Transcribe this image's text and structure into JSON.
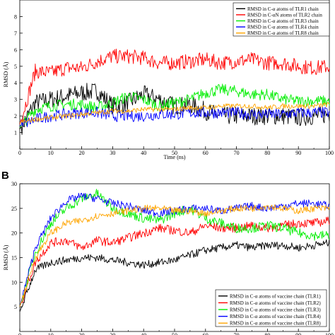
{
  "chart_data": [
    {
      "type": "line",
      "panel_label": "",
      "xlabel": "Time (ns)",
      "ylabel": "RMSD (Å)",
      "xlim": [
        0,
        100
      ],
      "ylim": [
        0,
        9
      ],
      "x_ticks": [
        0,
        10,
        20,
        30,
        40,
        50,
        60,
        70,
        80,
        90,
        100
      ],
      "y_ticks": [
        0,
        1,
        2,
        3,
        4,
        5,
        6,
        7,
        8
      ],
      "x_tick_labels": [
        "0",
        "10",
        "20",
        "30",
        "40",
        "50",
        "60",
        "70",
        "80",
        "90",
        "100"
      ],
      "y_tick_labels": [
        "",
        "1",
        "2",
        "3",
        "4",
        "5",
        "6",
        "7",
        "8"
      ],
      "grid": false,
      "legend_position": "top-right",
      "x": [
        0,
        5,
        10,
        15,
        20,
        25,
        30,
        35,
        40,
        45,
        50,
        55,
        60,
        65,
        70,
        75,
        80,
        85,
        90,
        95,
        100
      ],
      "series": [
        {
          "name": "RMSD in C-α atoms of TLR1 chain",
          "color": "#000000",
          "values": [
            1.2,
            2.8,
            3.0,
            3.2,
            3.4,
            3.5,
            2.6,
            2.8,
            3.3,
            3.0,
            2.6,
            2.7,
            2.3,
            2.0,
            2.0,
            2.0,
            2.0,
            2.0,
            1.9,
            2.0,
            2.1
          ]
        },
        {
          "name": "RMSD in C-αN atoms of TLR2 chain",
          "color": "#ff0000",
          "values": [
            1.5,
            4.7,
            4.6,
            4.9,
            4.9,
            5.3,
            5.6,
            5.6,
            5.5,
            5.2,
            5.2,
            5.3,
            5.4,
            5.2,
            5.3,
            5.4,
            5.2,
            5.2,
            5.0,
            4.9,
            5.0
          ]
        },
        {
          "name": "RMSD in C-α atoms of TLR3 chain",
          "color": "#00ee00",
          "values": [
            1.3,
            2.4,
            2.6,
            2.7,
            2.7,
            2.5,
            2.8,
            3.2,
            3.0,
            2.6,
            2.8,
            3.0,
            3.4,
            3.6,
            3.5,
            3.3,
            3.3,
            3.0,
            2.9,
            2.9,
            2.9
          ]
        },
        {
          "name": "RMSD in C-α atoms of TLR4 chain",
          "color": "#0000ff",
          "values": [
            1.4,
            1.8,
            2.0,
            2.1,
            2.2,
            2.2,
            2.0,
            2.0,
            2.0,
            2.1,
            2.1,
            2.2,
            2.2,
            2.2,
            2.2,
            2.1,
            2.1,
            2.1,
            2.2,
            2.2,
            2.2
          ]
        },
        {
          "name": "RMSD in C-α atoms of TLR8 chain",
          "color": "#ffa500",
          "values": [
            1.6,
            1.8,
            1.9,
            2.0,
            2.1,
            2.2,
            2.3,
            2.3,
            2.4,
            2.4,
            2.4,
            2.5,
            2.5,
            2.6,
            2.6,
            2.6,
            2.5,
            2.6,
            2.6,
            2.6,
            2.7
          ]
        }
      ]
    },
    {
      "type": "line",
      "panel_label": "B",
      "xlabel": "",
      "ylabel": "RMSD (Å)",
      "xlim": [
        0,
        100
      ],
      "ylim": [
        0,
        30
      ],
      "x_ticks": [
        0,
        10,
        20,
        30,
        40,
        50,
        60,
        70,
        80,
        90,
        100
      ],
      "y_ticks": [
        5,
        10,
        15,
        20,
        25,
        30
      ],
      "x_tick_labels": [
        "0",
        "10",
        "20",
        "30",
        "40",
        "50",
        "60",
        "70",
        "80",
        "90",
        "100"
      ],
      "y_tick_labels": [
        "5",
        "10",
        "15",
        "20",
        "25",
        "30"
      ],
      "grid": false,
      "legend_position": "bottom-right",
      "x": [
        0,
        5,
        10,
        15,
        20,
        25,
        30,
        35,
        40,
        45,
        50,
        55,
        60,
        65,
        70,
        75,
        80,
        85,
        90,
        95,
        100
      ],
      "series": [
        {
          "name": "RMSD in C-α atoms of vaccine chain (TLR1)",
          "color": "#000000",
          "values": [
            4,
            12.5,
            14,
            14.5,
            15,
            15,
            14.5,
            14,
            13.5,
            14,
            14.5,
            15.5,
            16.5,
            17,
            17.5,
            17,
            17.5,
            17.5,
            17,
            17.5,
            18
          ]
        },
        {
          "name": "RMSD in C-α atoms of vaccine chain (TLR2)",
          "color": "#ff0000",
          "values": [
            5,
            14,
            18,
            18.5,
            17,
            18.5,
            18,
            19,
            20,
            21,
            20.5,
            20,
            21.5,
            21,
            21,
            21.5,
            21,
            21.5,
            22,
            22,
            22.5
          ]
        },
        {
          "name": "RMSD in C-α atoms of vaccine chain (TLR3)",
          "color": "#00ee00",
          "values": [
            5,
            16,
            22,
            25,
            27,
            28,
            25,
            24,
            23,
            22.5,
            24,
            25,
            23,
            22,
            21,
            21,
            21.5,
            21,
            20,
            19.5,
            19.5
          ]
        },
        {
          "name": "RMSD in C-α atoms of vaccine chain (TLR4)",
          "color": "#0000ff",
          "values": [
            5,
            17,
            23,
            26.5,
            27.5,
            27,
            26,
            25.5,
            24.5,
            24,
            24.5,
            25,
            25,
            24.5,
            25,
            25.5,
            25,
            25.5,
            26,
            26,
            25.5
          ]
        },
        {
          "name": "RMSD in C-α atoms of vaccine chain (TLR8)",
          "color": "#ffa500",
          "values": [
            5,
            15,
            20,
            22,
            22.5,
            23.5,
            24,
            24.5,
            25,
            25,
            24.5,
            24.5,
            24,
            24.5,
            25,
            25,
            25.5,
            25,
            24.5,
            25,
            25
          ]
        }
      ]
    }
  ]
}
